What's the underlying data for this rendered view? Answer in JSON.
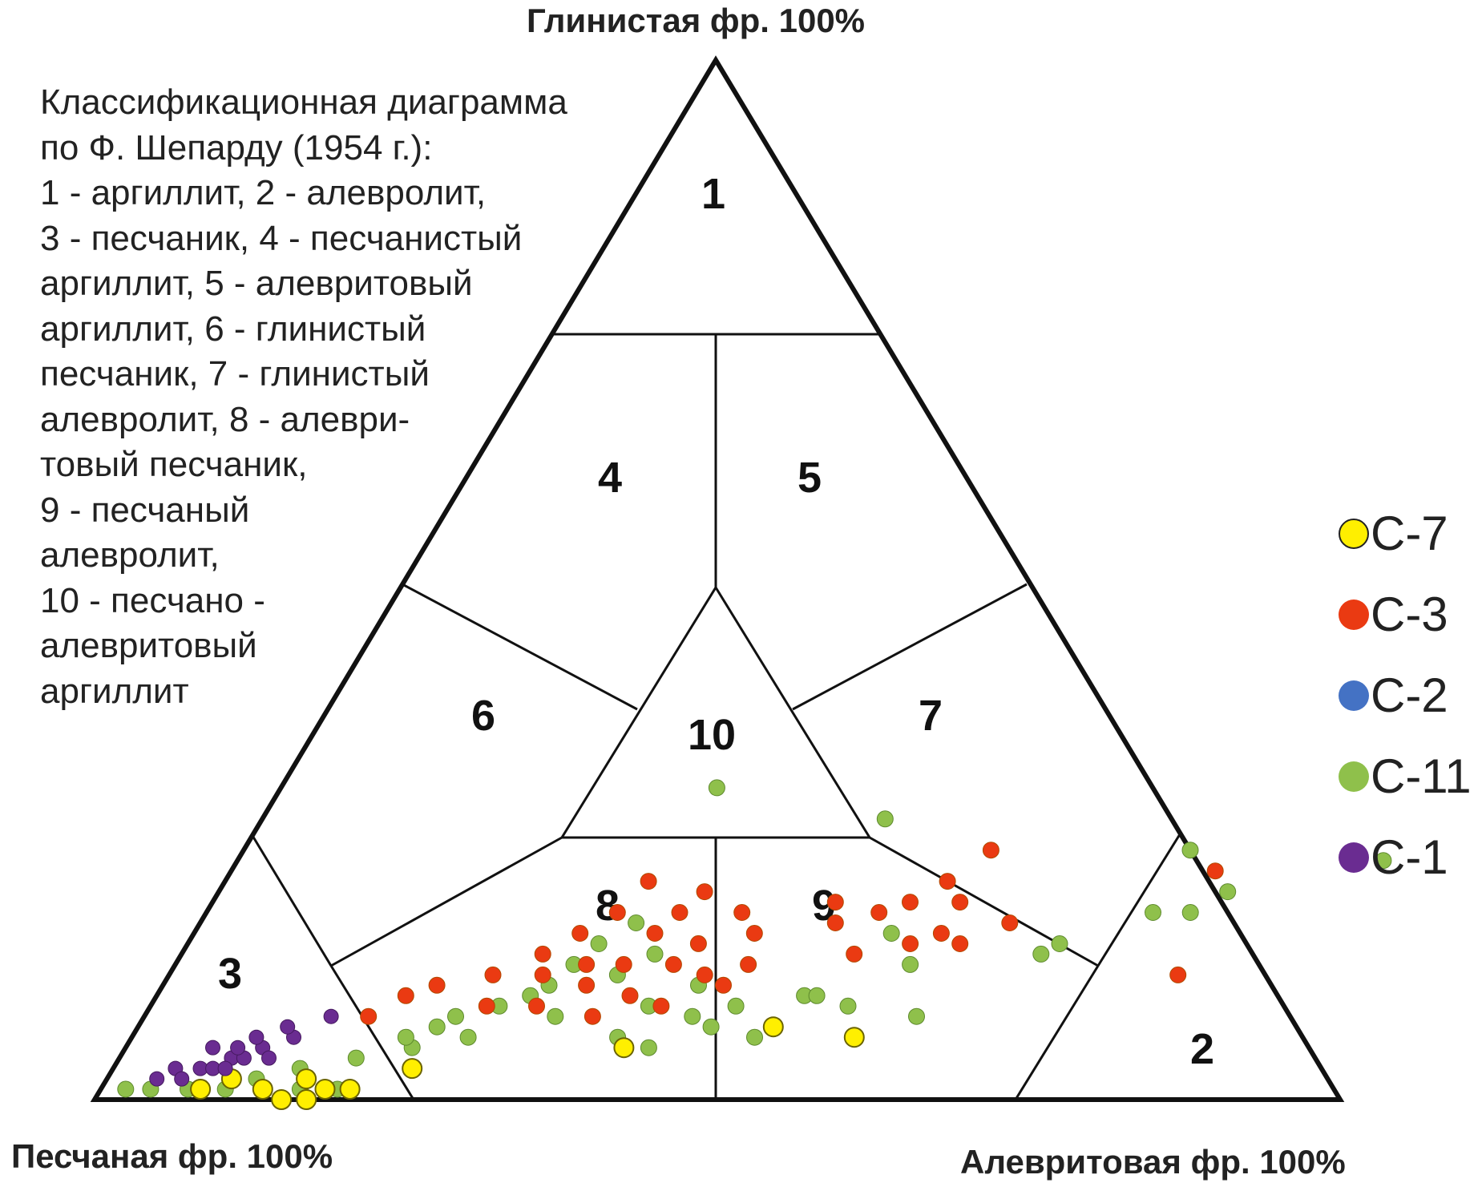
{
  "chart_data": {
    "type": "scatter",
    "subtype": "ternary",
    "title": "",
    "vertices": {
      "top": "Глинистая фр. 100%",
      "left": "Песчаная фр. 100%",
      "right": "Алевритовая фр. 100%"
    },
    "zone_labels": [
      "1",
      "2",
      "3",
      "4",
      "5",
      "6",
      "7",
      "8",
      "9",
      "10"
    ],
    "note_lines": [
      "Классификационная диаграмма",
      "по Ф. Шепарду (1954 г.):",
      "1 - аргиллит, 2 - алевролит,",
      "3 - песчаник, 4 - песчанистый",
      "аргиллит,  5 - алевритовый",
      "аргиллит, 6 - глинистый",
      "песчаник, 7 - глинистый",
      "алевролит, 8 - алеври-",
      "товый песчаник,",
      "9 - песчаный",
      "алевролит,",
      "10 - песчано -",
      "алевритовый",
      "аргиллит"
    ],
    "axes": [
      "sand",
      "silt",
      "clay"
    ],
    "units": "%",
    "series": [
      {
        "name": "С-7",
        "color": "#ffef00",
        "stroke": "#6b6400",
        "points": [
          {
            "clay": 1,
            "silt": 8
          },
          {
            "clay": 2,
            "silt": 10
          },
          {
            "clay": 1,
            "silt": 13
          },
          {
            "clay": 0,
            "silt": 15
          },
          {
            "clay": 2,
            "silt": 16
          },
          {
            "clay": 1,
            "silt": 18
          },
          {
            "clay": 1,
            "silt": 20
          },
          {
            "clay": 0,
            "silt": 17
          },
          {
            "clay": 3,
            "silt": 24
          },
          {
            "clay": 5,
            "silt": 40
          },
          {
            "clay": 7,
            "silt": 51
          },
          {
            "clay": 6,
            "silt": 58
          }
        ]
      },
      {
        "name": "С-3",
        "color": "#ea3a12",
        "stroke": "#b04a00",
        "points": [
          {
            "clay": 22,
            "silt": 79
          },
          {
            "clay": 17,
            "silt": 65
          },
          {
            "clay": 12,
            "silt": 81
          },
          {
            "clay": 8,
            "silt": 18
          },
          {
            "clay": 10,
            "silt": 20
          },
          {
            "clay": 11,
            "silt": 22
          },
          {
            "clay": 12,
            "silt": 26
          },
          {
            "clay": 12,
            "silt": 30
          },
          {
            "clay": 13,
            "silt": 33
          },
          {
            "clay": 14,
            "silt": 29
          },
          {
            "clay": 16,
            "silt": 31
          },
          {
            "clay": 18,
            "silt": 33
          },
          {
            "clay": 21,
            "silt": 34
          },
          {
            "clay": 11,
            "silt": 34
          },
          {
            "clay": 13,
            "silt": 36
          },
          {
            "clay": 16,
            "silt": 37
          },
          {
            "clay": 18,
            "silt": 38
          },
          {
            "clay": 20,
            "silt": 39
          },
          {
            "clay": 10,
            "silt": 38
          },
          {
            "clay": 13,
            "silt": 40
          },
          {
            "clay": 15,
            "silt": 41
          },
          {
            "clay": 18,
            "silt": 43
          },
          {
            "clay": 9,
            "silt": 41
          },
          {
            "clay": 12,
            "silt": 43
          },
          {
            "clay": 16,
            "silt": 45
          },
          {
            "clay": 13,
            "silt": 46
          },
          {
            "clay": 11,
            "silt": 45
          },
          {
            "clay": 19,
            "silt": 50
          },
          {
            "clay": 17,
            "silt": 51
          },
          {
            "clay": 14,
            "silt": 54
          },
          {
            "clay": 18,
            "silt": 54
          },
          {
            "clay": 19,
            "silt": 56
          },
          {
            "clay": 21,
            "silt": 58
          },
          {
            "clay": 24,
            "silt": 60
          },
          {
            "clay": 19,
            "silt": 60
          },
          {
            "clay": 16,
            "silt": 60
          },
          {
            "clay": 15,
            "silt": 62
          },
          {
            "clay": 15,
            "silt": 58
          },
          {
            "clay": 9,
            "silt": 27
          },
          {
            "clay": 9,
            "silt": 31
          },
          {
            "clay": 8,
            "silt": 36
          }
        ]
      },
      {
        "name": "С-2",
        "color": "#4472c4",
        "stroke": "#2f528f",
        "points": []
      },
      {
        "name": "С-11",
        "color": "#8fc04b",
        "stroke": "#5e8a2e",
        "points": [
          {
            "clay": 1,
            "silt": 2
          },
          {
            "clay": 1,
            "silt": 4
          },
          {
            "clay": 1,
            "silt": 7
          },
          {
            "clay": 1,
            "silt": 10
          },
          {
            "clay": 1,
            "silt": 13
          },
          {
            "clay": 1,
            "silt": 16
          },
          {
            "clay": 1,
            "silt": 19
          },
          {
            "clay": 2,
            "silt": 12
          },
          {
            "clay": 3,
            "silt": 15
          },
          {
            "clay": 4,
            "silt": 19
          },
          {
            "clay": 5,
            "silt": 23
          },
          {
            "clay": 6,
            "silt": 22
          },
          {
            "clay": 7,
            "silt": 24
          },
          {
            "clay": 8,
            "silt": 25
          },
          {
            "clay": 6,
            "silt": 27
          },
          {
            "clay": 9,
            "silt": 28
          },
          {
            "clay": 10,
            "silt": 30
          },
          {
            "clay": 11,
            "silt": 31
          },
          {
            "clay": 13,
            "silt": 32
          },
          {
            "clay": 15,
            "silt": 33
          },
          {
            "clay": 17,
            "silt": 35
          },
          {
            "clay": 12,
            "silt": 36
          },
          {
            "clay": 14,
            "silt": 38
          },
          {
            "clay": 8,
            "silt": 33
          },
          {
            "clay": 6,
            "silt": 39
          },
          {
            "clay": 5,
            "silt": 42
          },
          {
            "clay": 9,
            "silt": 40
          },
          {
            "clay": 8,
            "silt": 44
          },
          {
            "clay": 6,
            "silt": 50
          },
          {
            "clay": 9,
            "silt": 47
          },
          {
            "clay": 10,
            "silt": 52
          },
          {
            "clay": 13,
            "silt": 59
          },
          {
            "clay": 16,
            "silt": 56
          },
          {
            "clay": 30,
            "silt": 35
          },
          {
            "clay": 27,
            "silt": 50
          },
          {
            "clay": 10,
            "silt": 53
          },
          {
            "clay": 11,
            "silt": 43
          },
          {
            "clay": 7,
            "silt": 46
          },
          {
            "clay": 8,
            "silt": 62
          },
          {
            "clay": 9,
            "silt": 56
          },
          {
            "clay": 24,
            "silt": 76
          },
          {
            "clay": 14,
            "silt": 69
          },
          {
            "clay": 15,
            "silt": 70
          },
          {
            "clay": 18,
            "silt": 76
          },
          {
            "clay": 18,
            "silt": 79
          },
          {
            "clay": 20,
            "silt": 81
          },
          {
            "clay": 23,
            "silt": 92
          }
        ]
      },
      {
        "name": "С-1",
        "color": "#6a2c91",
        "stroke": "#45195f",
        "points": [
          {
            "clay": 2,
            "silt": 4
          },
          {
            "clay": 3,
            "silt": 5
          },
          {
            "clay": 2,
            "silt": 6
          },
          {
            "clay": 3,
            "silt": 7
          },
          {
            "clay": 3,
            "silt": 8
          },
          {
            "clay": 4,
            "silt": 9
          },
          {
            "clay": 4,
            "silt": 10
          },
          {
            "clay": 3,
            "silt": 9
          },
          {
            "clay": 5,
            "silt": 11
          },
          {
            "clay": 6,
            "silt": 13
          },
          {
            "clay": 4,
            "silt": 12
          },
          {
            "clay": 5,
            "silt": 9
          },
          {
            "clay": 8,
            "silt": 15
          },
          {
            "clay": 5,
            "silt": 7
          },
          {
            "clay": 6,
            "silt": 10
          },
          {
            "clay": 7,
            "silt": 12
          }
        ]
      }
    ]
  }
}
